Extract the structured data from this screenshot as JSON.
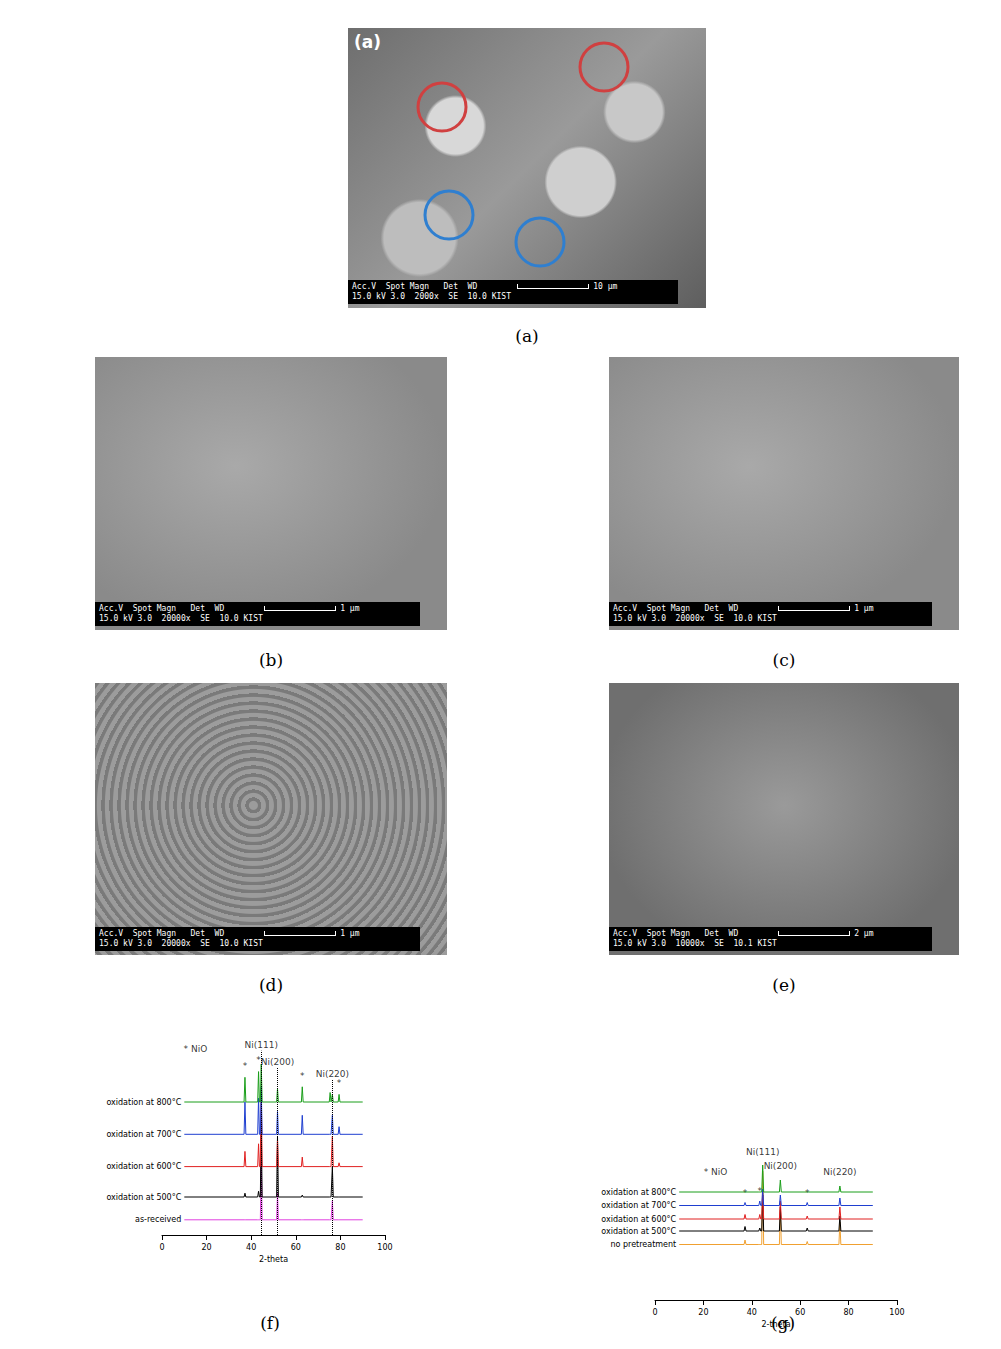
{
  "panels": [
    {
      "caption": "(a)",
      "inset_label": "(a)",
      "info_header": "Acc.V  Spot Magn   Det  WD",
      "info_values": "15.0 kV 3.0  2000x  SE  10.0 KIST",
      "scale_bar": "10 μm"
    },
    {
      "caption": "(b)",
      "info_header": "Acc.V  Spot Magn   Det  WD",
      "info_values": "15.0 kV 3.0  20000x  SE  10.0 KIST",
      "scale_bar": "1 μm"
    },
    {
      "caption": "(c)",
      "info_header": "Acc.V  Spot Magn   Det  WD",
      "info_values": "15.0 kV 3.0  20000x  SE  10.0 KIST",
      "scale_bar": "1 μm"
    },
    {
      "caption": "(d)",
      "info_header": "Acc.V  Spot Magn   Det  WD",
      "info_values": "15.0 kV 3.0  20000x  SE  10.0 KIST",
      "scale_bar": "1 μm"
    },
    {
      "caption": "(e)",
      "info_header": "Acc.V  Spot Magn   Det  WD",
      "info_values": "15.0 kV 3.0  10000x  SE  10.1 KIST",
      "scale_bar": "2 μm"
    }
  ],
  "chart_data": [
    {
      "type": "line",
      "title": "(f)",
      "x_label": "2-theta",
      "xlim": [
        0,
        100
      ],
      "xticks": [
        0,
        20,
        40,
        60,
        80,
        100
      ],
      "ylim": [
        0,
        100
      ],
      "grid": false,
      "tick_labels": "x",
      "x": [
        10,
        36.8,
        37.2,
        37.6,
        42.9,
        43.3,
        43.7,
        44.1,
        44.5,
        44.9,
        51.4,
        51.8,
        52.2,
        62.5,
        62.9,
        63.3,
        75.0,
        75.4,
        75.8,
        76.0,
        76.4,
        76.8,
        79.0,
        79.4,
        79.8,
        90
      ],
      "series": [
        {
          "name": "as-received",
          "color": "#e040e0",
          "values": [
            8,
            8,
            8,
            8,
            8,
            8,
            8,
            8,
            40,
            8,
            8,
            22,
            8,
            8,
            8,
            8,
            8,
            8,
            8,
            8,
            18,
            8,
            8,
            8,
            8,
            8
          ]
        },
        {
          "name": "oxidation at 500°C",
          "color": "#000000",
          "values": [
            20,
            20,
            22,
            20,
            20,
            23,
            20,
            20,
            60,
            20,
            20,
            52,
            20,
            20,
            21,
            20,
            20,
            20,
            20,
            20,
            36,
            20,
            20,
            20,
            20,
            20
          ]
        },
        {
          "name": "oxidation at 600°C",
          "color": "#e02020",
          "values": [
            36,
            36,
            44,
            36,
            36,
            48,
            36,
            36,
            76,
            36,
            36,
            50,
            36,
            36,
            41,
            36,
            36,
            36,
            36,
            36,
            52,
            36,
            36,
            38,
            36,
            36
          ]
        },
        {
          "name": "oxidation at 700°C",
          "color": "#1f3fd0",
          "values": [
            53,
            53,
            70,
            53,
            53,
            72,
            53,
            53,
            78,
            53,
            53,
            65,
            53,
            53,
            63,
            53,
            53,
            53,
            53,
            53,
            63,
            53,
            53,
            57,
            53,
            53
          ]
        },
        {
          "name": "oxidation at 800°C",
          "color": "#1a9e1a",
          "values": [
            70,
            70,
            83,
            70,
            70,
            86,
            70,
            70,
            90,
            70,
            70,
            77,
            70,
            70,
            78,
            70,
            70,
            75,
            70,
            70,
            74,
            70,
            70,
            74,
            70,
            70
          ]
        }
      ],
      "annotations": [
        {
          "text": "* NiO",
          "x": 15,
          "y": 95
        },
        {
          "text": "Ni(111)",
          "x": 44.5,
          "y": 97,
          "line_style": "dotted"
        },
        {
          "text": "Ni(200)",
          "x": 51.8,
          "y": 88,
          "line_style": "dotted"
        },
        {
          "text": "Ni(220)",
          "x": 76.4,
          "y": 82,
          "line_style": "dotted"
        },
        {
          "text": "*",
          "x": 37.2,
          "y": 86
        },
        {
          "text": "*",
          "x": 43.3,
          "y": 89
        },
        {
          "text": "*",
          "x": 62.9,
          "y": 81
        },
        {
          "text": "*",
          "x": 79.4,
          "y": 77
        }
      ]
    },
    {
      "type": "line",
      "title": "(g)",
      "x_label": "2-theta",
      "xlim": [
        0,
        100
      ],
      "xticks": [
        0,
        20,
        40,
        60,
        80,
        100
      ],
      "ylim": [
        0,
        100
      ],
      "grid": false,
      "tick_labels": "x",
      "x": [
        10,
        36.8,
        37.2,
        37.6,
        42.9,
        43.3,
        43.7,
        44.1,
        44.5,
        44.9,
        51.4,
        51.8,
        52.2,
        62.5,
        62.9,
        63.3,
        76.0,
        76.4,
        76.8,
        90
      ],
      "series": [
        {
          "name": "no pretreatment",
          "color": "#f0a030",
          "values": [
            37,
            37,
            40,
            37,
            37,
            37,
            37,
            37,
            86,
            37,
            37,
            60,
            37,
            37,
            39,
            37,
            37,
            52,
            37,
            37
          ]
        },
        {
          "name": "oxidation at 500°C",
          "color": "#000000",
          "values": [
            46,
            46,
            49,
            46,
            46,
            48,
            46,
            46,
            70,
            46,
            46,
            62,
            46,
            46,
            48,
            46,
            46,
            56,
            46,
            46
          ]
        },
        {
          "name": "oxidation at 600°C",
          "color": "#e02020",
          "values": [
            54,
            54,
            57,
            54,
            54,
            57,
            54,
            54,
            72,
            54,
            54,
            66,
            54,
            54,
            56,
            54,
            54,
            62,
            54,
            54
          ]
        },
        {
          "name": "oxidation at 700°C",
          "color": "#1f3fd0",
          "values": [
            63,
            63,
            65,
            63,
            63,
            66,
            63,
            63,
            74,
            63,
            63,
            70,
            63,
            63,
            65,
            63,
            63,
            68,
            63,
            63
          ]
        },
        {
          "name": "oxidation at 800°C",
          "color": "#1a9e1a",
          "values": [
            72,
            72,
            72,
            72,
            72,
            72,
            72,
            72,
            90,
            72,
            72,
            80,
            72,
            72,
            72,
            72,
            72,
            76,
            72,
            72
          ]
        }
      ],
      "annotations": [
        {
          "text": "* NiO",
          "x": 25,
          "y": 82
        },
        {
          "text": "Ni(111)",
          "x": 44.5,
          "y": 95
        },
        {
          "text": "Ni(200)",
          "x": 51.8,
          "y": 86
        },
        {
          "text": "Ni(220)",
          "x": 76.4,
          "y": 82
        },
        {
          "text": "*",
          "x": 37.2,
          "y": 68
        },
        {
          "text": "*",
          "x": 43.3,
          "y": 69
        },
        {
          "text": "*",
          "x": 62.9,
          "y": 68
        }
      ]
    }
  ]
}
